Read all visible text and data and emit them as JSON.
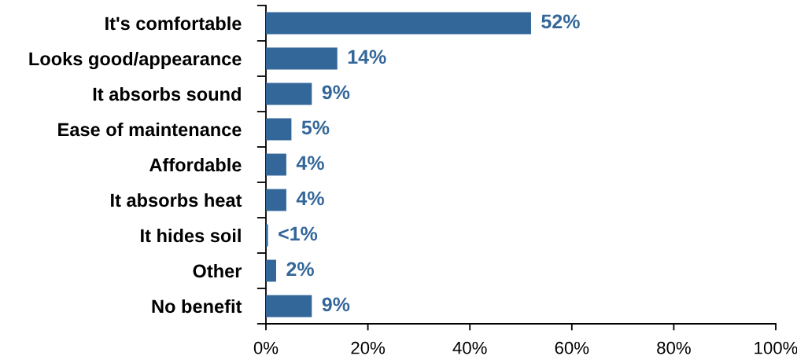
{
  "chart_data": {
    "type": "bar",
    "orientation": "horizontal",
    "categories": [
      "It's comfortable",
      "Looks good/appearance",
      "It absorbs sound",
      "Ease of maintenance",
      "Affordable",
      "It absorbs heat",
      "It hides soil",
      "Other",
      "No benefit"
    ],
    "values": [
      52,
      14,
      9,
      5,
      4,
      4,
      0.4,
      2,
      9
    ],
    "value_labels": [
      "52%",
      "14%",
      "9%",
      "5%",
      "4%",
      "4%",
      "<1%",
      "2%",
      "9%"
    ],
    "color": "#336699",
    "xlim": [
      0,
      100
    ],
    "xticks": [
      {
        "value": 0,
        "label": "0%"
      },
      {
        "value": 20,
        "label": "20%"
      },
      {
        "value": 40,
        "label": "40%"
      },
      {
        "value": 60,
        "label": "60%"
      },
      {
        "value": 80,
        "label": "80%"
      },
      {
        "value": 100,
        "label": "100%"
      }
    ],
    "grid": false,
    "legend": false
  }
}
